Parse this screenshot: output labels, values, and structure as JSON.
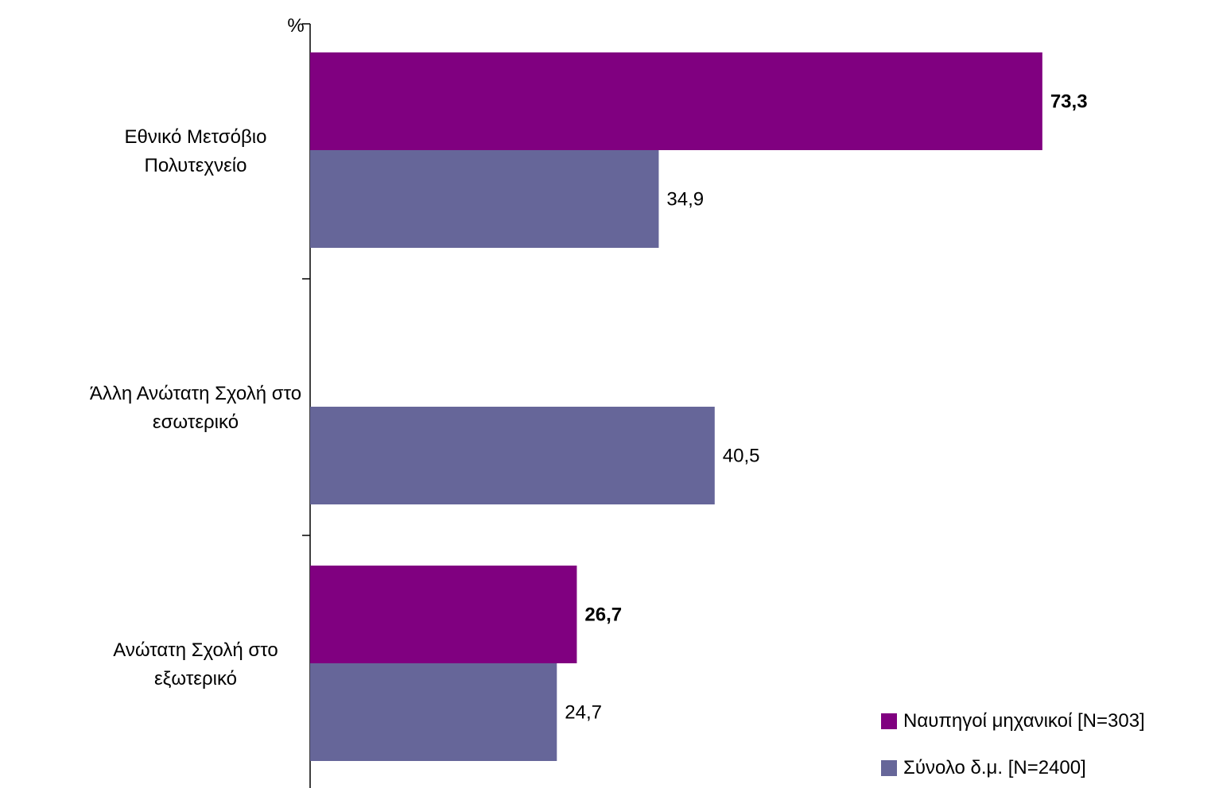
{
  "chart_data": {
    "type": "bar",
    "orientation": "horizontal",
    "unit_label": "%",
    "categories": [
      [
        "Εθνικό Μετσόβιο",
        "Πολυτεχνείο"
      ],
      [
        "Άλλη Ανώτατη Σχολή στο",
        "εσωτερικό"
      ],
      [
        "Ανώτατη Σχολή στο",
        "εξωτερικό"
      ]
    ],
    "series": [
      {
        "name": "Ναυπηγοί μηχανικοί [N=303]",
        "color": "#800080",
        "label_bold": true,
        "values": [
          73.3,
          null,
          26.7
        ],
        "labels": [
          "73,3",
          "",
          "26,7"
        ]
      },
      {
        "name": "Σύνολο δ.μ. [N=2400]",
        "color": "#666699",
        "label_bold": false,
        "values": [
          34.9,
          40.5,
          24.7
        ],
        "labels": [
          "34,9",
          "40,5",
          "24,7"
        ]
      }
    ],
    "xlim": [
      0,
      80
    ],
    "grid": false,
    "legend_position": "bottom-right"
  }
}
